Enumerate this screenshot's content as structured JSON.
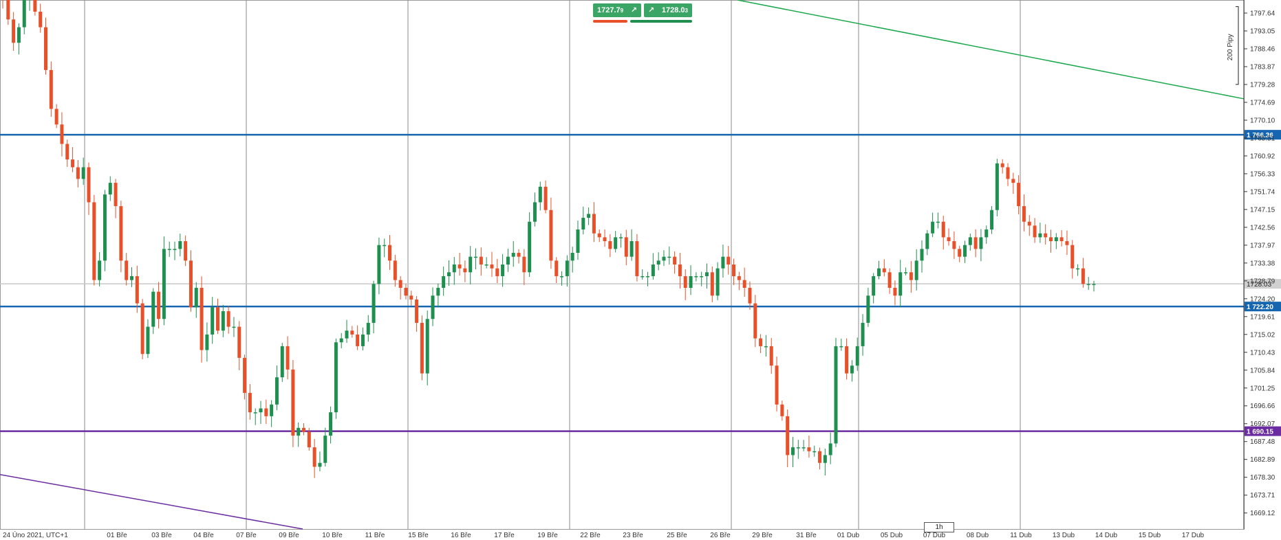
{
  "trade_panel": {
    "sell_price": "1727.7",
    "sell_price_small": "9",
    "buy_price": "1728.0",
    "buy_price_small": "3",
    "arrow": "↗"
  },
  "timeframe": {
    "label": "1h"
  },
  "colors": {
    "up": "#1e8f4e",
    "down": "#e8502a",
    "grid": "#8a8a8a",
    "blue_line": "#1565b0",
    "purple_line": "#6a2ca0",
    "green_line": "#1aa84b",
    "current_line": "#c8c8c8"
  },
  "chart_data": {
    "type": "candlestick",
    "symbol_note": "24 Úno 2021, UTC+1",
    "ylim": [
      1665.0,
      1801.0
    ],
    "y_ticks": [
      "1797.64",
      "1793.05",
      "1788.46",
      "1783.87",
      "1779.28",
      "1774.69",
      "1770.10",
      "1765.51",
      "1760.92",
      "1756.33",
      "1751.74",
      "1747.15",
      "1742.56",
      "1737.97",
      "1733.38",
      "1728.79",
      "1724.20",
      "1719.61",
      "1715.02",
      "1710.43",
      "1705.84",
      "1701.25",
      "1696.66",
      "1692.07",
      "1687.48",
      "1682.89",
      "1678.30",
      "1673.71",
      "1669.12"
    ],
    "x_ticks": [
      "24 Úno 2021, UTC+1",
      "01 Bře",
      "03 Bře",
      "04 Bře",
      "07 Bře",
      "09 Bře",
      "10 Bře",
      "11 Bře",
      "15 Bře",
      "16 Bře",
      "17 Bře",
      "19 Bře",
      "22 Bře",
      "23 Bře",
      "25 Bře",
      "26 Bře",
      "29 Bře",
      "31 Bře",
      "01 Dub",
      "05 Dub",
      "07 Dub",
      "08 Dub",
      "11 Dub",
      "13 Dub",
      "14 Dub",
      "15 Dub",
      "17 Dub"
    ],
    "horizontal_lines": [
      {
        "price": 1766.36,
        "label": "1 766.36",
        "color": "#1565b0"
      },
      {
        "price": 1722.2,
        "label": "1 722.20",
        "color": "#1565b0"
      },
      {
        "price": 1690.15,
        "label": "1 690.15",
        "color": "#6a2ca0"
      }
    ],
    "current_price": {
      "price": 1728.03,
      "label": "1728.03"
    },
    "trend_lines": [
      {
        "color": "#1aa84b",
        "from": {
          "x": "22 Bře",
          "y": 1801.0
        },
        "to": {
          "x": "17 Dub",
          "y": 1775.6
        }
      },
      {
        "color": "#6a2ca0",
        "from": {
          "x": "24 Úno",
          "y": 1679.0
        },
        "to": {
          "x": "09 Bře",
          "y": 1665.0
        }
      }
    ],
    "scale_bracket": {
      "label": "200 Pipy",
      "from": 1799.3,
      "to": 1779.3
    },
    "closes": [
      1801,
      1796,
      1790,
      1794,
      1801,
      1802,
      1798,
      1794,
      1783,
      1773,
      1769,
      1764,
      1760,
      1758,
      1755,
      1758,
      1749,
      1729,
      1734,
      1751,
      1754,
      1748,
      1734,
      1729,
      1730,
      1723,
      1710,
      1717,
      1726,
      1719,
      1737,
      1737,
      1737,
      1739,
      1734,
      1722,
      1727,
      1711,
      1715,
      1722,
      1716,
      1721,
      1717,
      1717,
      1709,
      1700,
      1695,
      1695,
      1696,
      1694,
      1697,
      1704,
      1712,
      1706,
      1689,
      1691,
      1690,
      1686,
      1681,
      1682,
      1689,
      1695,
      1713,
      1714,
      1716,
      1715,
      1712,
      1715,
      1718,
      1728,
      1738,
      1738,
      1734,
      1729,
      1727,
      1725,
      1724,
      1718,
      1705,
      1719,
      1725,
      1727,
      1730,
      1731,
      1733,
      1732,
      1731,
      1735,
      1735,
      1733,
      1733,
      1732,
      1730,
      1733,
      1735,
      1736,
      1735,
      1731,
      1744,
      1749,
      1753,
      1747,
      1734,
      1730,
      1730,
      1734,
      1736,
      1742,
      1745,
      1746,
      1741,
      1740,
      1739,
      1737,
      1740,
      1740,
      1735,
      1739,
      1730,
      1730,
      1730,
      1733,
      1734,
      1735,
      1735,
      1733,
      1730,
      1727,
      1730,
      1730,
      1730,
      1731,
      1725,
      1732,
      1735,
      1733,
      1730,
      1729,
      1727,
      1723,
      1714,
      1712,
      1712,
      1707,
      1697,
      1694,
      1684,
      1686,
      1686,
      1686,
      1685,
      1685,
      1682,
      1684,
      1687,
      1712,
      1712,
      1705,
      1707,
      1712,
      1718,
      1725,
      1730,
      1732,
      1731,
      1727,
      1725,
      1731,
      1731,
      1729,
      1734,
      1737,
      1741,
      1744,
      1744,
      1740,
      1739,
      1737,
      1735,
      1738,
      1740,
      1737,
      1740,
      1742,
      1747,
      1759,
      1758,
      1755,
      1754,
      1748,
      1744,
      1743,
      1740,
      1741,
      1740,
      1739,
      1740,
      1739,
      1738,
      1732,
      1732,
      1728,
      1728,
      1728
    ]
  }
}
